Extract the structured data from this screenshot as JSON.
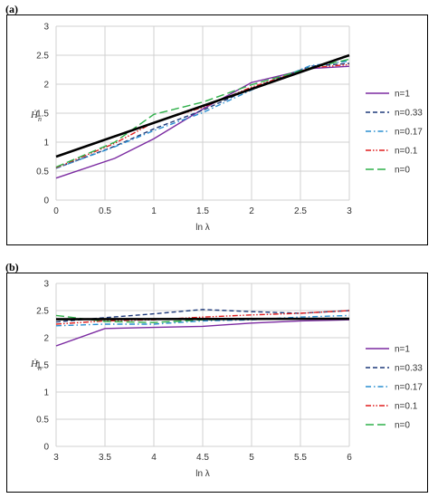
{
  "chart_data": [
    {
      "panel": "(a)",
      "type": "line",
      "xlabel": "ln λ",
      "ylabel": "Ḣ",
      "ylabel_sub": "n",
      "xlim": [
        0,
        3
      ],
      "ylim": [
        0,
        3
      ],
      "xticks": [
        "0",
        "0.5",
        "1",
        "1.5",
        "2",
        "2.5",
        "3"
      ],
      "yticks": [
        "0",
        "0.5",
        "1",
        "1.5",
        "2",
        "2.5",
        "3"
      ],
      "grid": true,
      "legend_position": "right",
      "series": [
        {
          "name": "n=1",
          "color": "#7b2aa1",
          "dash": "solid",
          "points": [
            [
              0,
              0.38
            ],
            [
              0.6,
              0.72
            ],
            [
              1.0,
              1.06
            ],
            [
              1.5,
              1.57
            ],
            [
              2.0,
              2.03
            ],
            [
              2.6,
              2.27
            ],
            [
              3.0,
              2.31
            ]
          ]
        },
        {
          "name": "n=0.33",
          "color": "#1f3a7a",
          "dash": "dash",
          "points": [
            [
              0,
              0.55
            ],
            [
              0.6,
              0.93
            ],
            [
              1.0,
              1.23
            ],
            [
              1.5,
              1.55
            ],
            [
              2.0,
              1.93
            ],
            [
              2.6,
              2.31
            ],
            [
              3.0,
              2.36
            ]
          ]
        },
        {
          "name": "n=0.17",
          "color": "#2a8fd1",
          "dash": "dashdot",
          "points": [
            [
              0,
              0.55
            ],
            [
              0.6,
              0.92
            ],
            [
              1.0,
              1.2
            ],
            [
              1.5,
              1.51
            ],
            [
              2.0,
              1.9
            ],
            [
              2.6,
              2.32
            ],
            [
              3.0,
              2.4
            ]
          ]
        },
        {
          "name": "n=0.1",
          "color": "#e01f1f",
          "dash": "dashdotdot",
          "points": [
            [
              0,
              0.56
            ],
            [
              0.6,
              0.98
            ],
            [
              1.0,
              1.34
            ],
            [
              1.5,
              1.6
            ],
            [
              2.0,
              1.95
            ],
            [
              2.6,
              2.28
            ],
            [
              3.0,
              2.34
            ]
          ]
        },
        {
          "name": "n=0",
          "color": "#2fb04a",
          "dash": "longdash",
          "points": [
            [
              0,
              0.57
            ],
            [
              0.6,
              1.0
            ],
            [
              1.0,
              1.48
            ],
            [
              1.5,
              1.69
            ],
            [
              2.0,
              1.99
            ],
            [
              2.6,
              2.28
            ],
            [
              3.0,
              2.43
            ]
          ]
        },
        {
          "name": "",
          "color": "#000000",
          "dash": "solid",
          "bold": true,
          "points": [
            [
              0,
              0.75
            ],
            [
              3.0,
              2.5
            ]
          ]
        }
      ]
    },
    {
      "panel": "(b)",
      "type": "line",
      "xlabel": "ln λ",
      "ylabel": "Ḣ",
      "ylabel_sub": "n",
      "xlim": [
        3,
        6
      ],
      "ylim": [
        0,
        3
      ],
      "xticks": [
        "3",
        "3.5",
        "4",
        "4.5",
        "5",
        "5.5",
        "6"
      ],
      "yticks": [
        "0",
        "0.5",
        "1",
        "1.5",
        "2",
        "2.5",
        "3"
      ],
      "grid": true,
      "legend_position": "right",
      "series": [
        {
          "name": "n=1",
          "color": "#7b2aa1",
          "dash": "solid",
          "points": [
            [
              3.0,
              1.85
            ],
            [
              3.5,
              2.17
            ],
            [
              4.0,
              2.19
            ],
            [
              4.5,
              2.21
            ],
            [
              5.0,
              2.27
            ],
            [
              5.5,
              2.31
            ],
            [
              6.0,
              2.33
            ]
          ]
        },
        {
          "name": "n=0.33",
          "color": "#1f3a7a",
          "dash": "dash",
          "points": [
            [
              3.0,
              2.29
            ],
            [
              3.5,
              2.37
            ],
            [
              4.0,
              2.44
            ],
            [
              4.5,
              2.52
            ],
            [
              5.0,
              2.48
            ],
            [
              5.5,
              2.45
            ],
            [
              6.0,
              2.5
            ]
          ]
        },
        {
          "name": "n=0.17",
          "color": "#2a8fd1",
          "dash": "dashdot",
          "points": [
            [
              3.0,
              2.22
            ],
            [
              3.5,
              2.25
            ],
            [
              4.0,
              2.25
            ],
            [
              4.5,
              2.31
            ],
            [
              5.0,
              2.33
            ],
            [
              5.5,
              2.38
            ],
            [
              6.0,
              2.41
            ]
          ]
        },
        {
          "name": "n=0.1",
          "color": "#e01f1f",
          "dash": "dashdotdot",
          "points": [
            [
              3.0,
              2.25
            ],
            [
              3.5,
              2.31
            ],
            [
              4.0,
              2.33
            ],
            [
              4.5,
              2.38
            ],
            [
              5.0,
              2.42
            ],
            [
              5.5,
              2.45
            ],
            [
              6.0,
              2.5
            ]
          ]
        },
        {
          "name": "n=0",
          "color": "#2fb04a",
          "dash": "longdash",
          "points": [
            [
              3.0,
              2.41
            ],
            [
              3.5,
              2.3
            ],
            [
              4.0,
              2.28
            ],
            [
              4.5,
              2.33
            ],
            [
              5.0,
              2.34
            ],
            [
              5.5,
              2.35
            ],
            [
              6.0,
              2.34
            ]
          ]
        },
        {
          "name": "",
          "color": "#000000",
          "dash": "solid",
          "bold": true,
          "points": [
            [
              3.0,
              2.34
            ],
            [
              6.0,
              2.35
            ]
          ]
        }
      ]
    }
  ]
}
